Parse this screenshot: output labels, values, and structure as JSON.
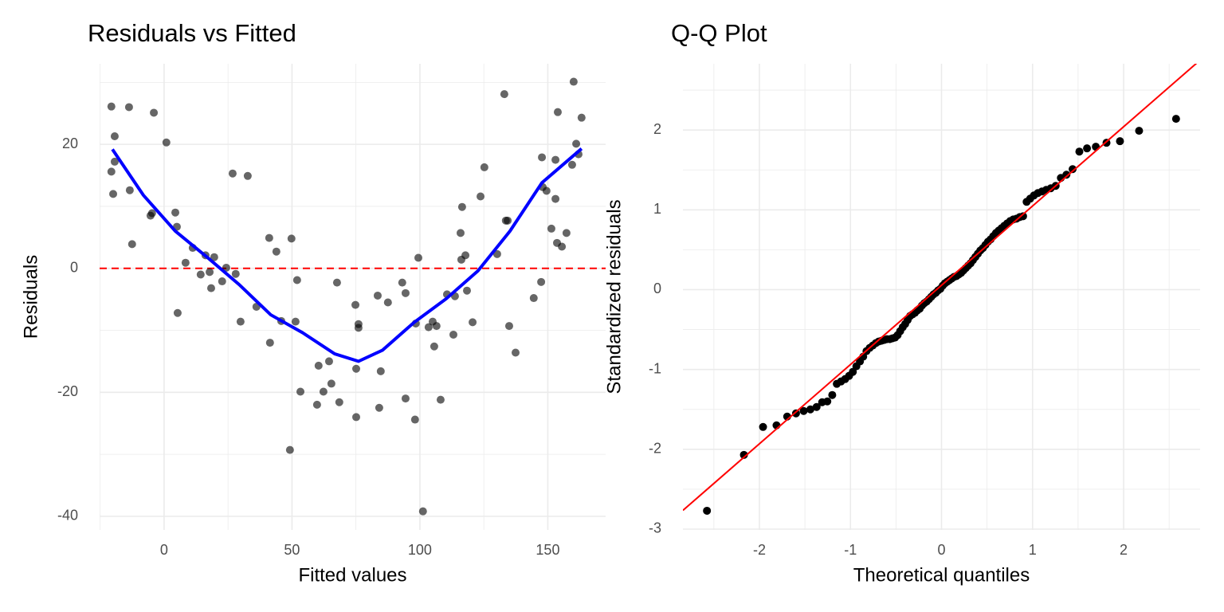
{
  "chart_data": [
    {
      "type": "scatter",
      "title": "Residuals vs Fitted",
      "x_label": "Fitted values",
      "y_label": "Residuals",
      "xlim": [
        -25.2,
        172.6
      ],
      "ylim": [
        -42.2,
        33.0
      ],
      "xticks": [
        0,
        50,
        100,
        150
      ],
      "yticks": [
        -40,
        -20,
        0,
        20
      ],
      "grid": true,
      "points": {
        "color": "#000000",
        "alpha": 0.6,
        "x": [
          -20.6,
          -19.3,
          -19.3,
          -20.6,
          -19.9,
          -13.7,
          -13.4,
          -12.5,
          -4.0,
          -5.3,
          -4.7,
          0.9,
          4.4,
          5.0,
          5.3,
          8.4,
          11.2,
          14.3,
          16.2,
          17.8,
          18.4,
          19.6,
          22.7,
          24.3,
          26.8,
          28.0,
          29.9,
          32.7,
          36.1,
          41.1,
          41.4,
          43.9,
          45.8,
          49.8,
          49.2,
          51.4,
          52.0,
          53.3,
          59.8,
          60.4,
          62.3,
          64.5,
          65.4,
          67.6,
          68.5,
          74.8,
          75.1,
          75.1,
          76.0,
          76.0,
          83.5,
          84.1,
          84.7,
          87.5,
          93.1,
          94.4,
          94.4,
          98.1,
          98.4,
          99.4,
          101.2,
          103.4,
          105.0,
          105.6,
          106.5,
          108.1,
          110.6,
          113.1,
          113.7,
          115.9,
          116.5,
          116.2,
          117.8,
          118.4,
          120.6,
          123.7,
          125.2,
          130.2,
          133.0,
          133.6,
          134.3,
          134.9,
          137.4,
          144.5,
          147.4,
          147.7,
          148.0,
          149.5,
          151.4,
          153.0,
          153.0,
          153.9,
          153.6,
          155.5,
          157.3,
          159.5,
          160.1,
          161.1,
          162.0,
          163.2
        ],
        "y": [
          26.1,
          21.3,
          17.2,
          15.6,
          12.0,
          26.0,
          12.6,
          3.9,
          25.1,
          8.5,
          8.9,
          20.3,
          9.0,
          6.7,
          -7.2,
          0.9,
          3.3,
          -1.0,
          2.1,
          -0.6,
          -3.2,
          1.8,
          -2.1,
          0.1,
          15.3,
          -0.9,
          -8.6,
          14.9,
          -6.2,
          4.9,
          -12.0,
          2.7,
          -8.5,
          4.8,
          -29.3,
          -8.6,
          -1.9,
          -19.9,
          -22.0,
          -15.7,
          -19.9,
          -15.0,
          -18.6,
          -2.3,
          -21.6,
          -5.9,
          -24.0,
          -16.2,
          -9.0,
          -9.6,
          -4.4,
          -22.5,
          -16.6,
          -5.5,
          -2.3,
          -4.0,
          -21.0,
          -24.4,
          -8.9,
          1.7,
          -39.2,
          -9.5,
          -8.6,
          -12.6,
          -9.3,
          -21.2,
          -4.2,
          -10.7,
          -4.5,
          5.7,
          9.9,
          1.4,
          2.1,
          -3.6,
          -8.7,
          11.6,
          16.3,
          2.3,
          28.1,
          7.7,
          7.7,
          -9.3,
          -13.6,
          -4.8,
          -2.2,
          17.9,
          13.1,
          12.5,
          6.4,
          17.5,
          11.2,
          25.2,
          4.1,
          3.5,
          5.7,
          16.7,
          30.1,
          20.1,
          18.4,
          24.3
        ]
      },
      "smooth": {
        "color": "#0000ff",
        "x": [
          -20.2,
          -8.1,
          4.4,
          16.8,
          29.3,
          41.7,
          54.2,
          66.7,
          76.0,
          85.4,
          97.8,
          110.3,
          122.7,
          135.2,
          147.7,
          163.2
        ],
        "y": [
          19.2,
          11.8,
          6.0,
          1.8,
          -2.6,
          -7.5,
          -10.4,
          -13.8,
          -15.0,
          -13.2,
          -8.7,
          -4.9,
          -0.4,
          6.0,
          13.8,
          19.3
        ]
      },
      "hline": {
        "y": 0,
        "color": "#ff0000",
        "dashed": true
      }
    },
    {
      "type": "scatter",
      "title": "Q-Q Plot",
      "x_label": "Theoretical quantiles",
      "y_label": "Standardized residuals",
      "xlim": [
        -2.84,
        2.84
      ],
      "ylim": [
        -3.01,
        2.83
      ],
      "xticks": [
        -2,
        -1,
        0,
        1,
        2
      ],
      "yticks": [
        -3,
        -2,
        -1,
        0,
        1,
        2
      ],
      "grid": true,
      "points": {
        "color": "#000000",
        "alpha": 1,
        "x": [
          -2.576,
          -2.17,
          -1.96,
          -1.812,
          -1.695,
          -1.598,
          -1.514,
          -1.44,
          -1.372,
          -1.311,
          -1.254,
          -1.2,
          -1.15,
          -1.103,
          -1.058,
          -1.015,
          -0.974,
          -0.935,
          -0.896,
          -0.86,
          -0.824,
          -0.789,
          -0.755,
          -0.722,
          -0.69,
          -0.659,
          -0.628,
          -0.598,
          -0.568,
          -0.539,
          -0.51,
          -0.482,
          -0.454,
          -0.426,
          -0.399,
          -0.372,
          -0.345,
          -0.319,
          -0.292,
          -0.266,
          -0.24,
          -0.215,
          -0.189,
          -0.164,
          -0.138,
          -0.113,
          -0.088,
          -0.063,
          -0.038,
          -0.013,
          0.013,
          0.038,
          0.063,
          0.088,
          0.113,
          0.138,
          0.164,
          0.189,
          0.215,
          0.24,
          0.266,
          0.292,
          0.319,
          0.345,
          0.372,
          0.399,
          0.426,
          0.454,
          0.482,
          0.51,
          0.539,
          0.568,
          0.598,
          0.628,
          0.659,
          0.69,
          0.722,
          0.755,
          0.789,
          0.824,
          0.86,
          0.896,
          0.935,
          0.974,
          1.015,
          1.058,
          1.103,
          1.15,
          1.2,
          1.254,
          1.311,
          1.372,
          1.44,
          1.514,
          1.598,
          1.695,
          1.812,
          1.96,
          2.17,
          2.576
        ],
        "y": [
          -2.77,
          -2.07,
          -1.72,
          -1.7,
          -1.59,
          -1.55,
          -1.52,
          -1.5,
          -1.47,
          -1.41,
          -1.4,
          -1.32,
          -1.18,
          -1.15,
          -1.12,
          -1.08,
          -1.03,
          -0.96,
          -0.9,
          -0.84,
          -0.77,
          -0.73,
          -0.7,
          -0.67,
          -0.65,
          -0.64,
          -0.63,
          -0.62,
          -0.62,
          -0.61,
          -0.6,
          -0.57,
          -0.52,
          -0.47,
          -0.43,
          -0.38,
          -0.33,
          -0.31,
          -0.29,
          -0.26,
          -0.24,
          -0.2,
          -0.17,
          -0.15,
          -0.12,
          -0.09,
          -0.06,
          -0.04,
          -0.01,
          0.01,
          0.05,
          0.08,
          0.1,
          0.12,
          0.14,
          0.16,
          0.17,
          0.19,
          0.21,
          0.24,
          0.27,
          0.3,
          0.33,
          0.37,
          0.41,
          0.45,
          0.49,
          0.52,
          0.56,
          0.6,
          0.63,
          0.67,
          0.71,
          0.74,
          0.77,
          0.8,
          0.83,
          0.86,
          0.88,
          0.89,
          0.91,
          0.92,
          1.1,
          1.14,
          1.18,
          1.21,
          1.23,
          1.25,
          1.27,
          1.3,
          1.4,
          1.44,
          1.51,
          1.73,
          1.77,
          1.79,
          1.84,
          1.86,
          1.99,
          2.14
        ]
      },
      "abline": {
        "intercept": 0.055,
        "slope": 0.993,
        "color": "#ff0000"
      }
    }
  ]
}
